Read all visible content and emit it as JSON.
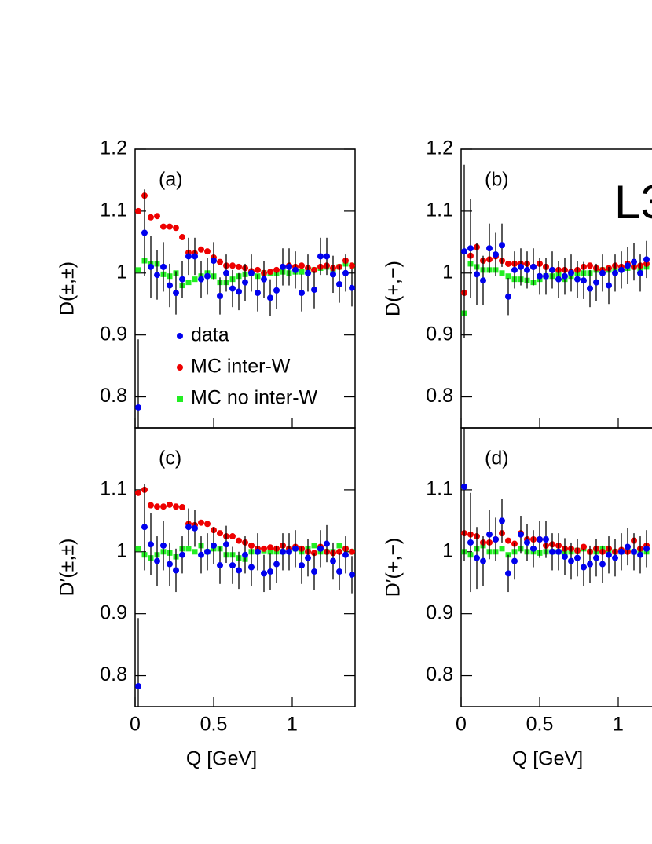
{
  "chart_data": [
    {
      "type": "scatter",
      "label": "(a)",
      "ylabel": "D(±,±)",
      "xlim": [
        0,
        1.4
      ],
      "ylim": [
        0.75,
        1.2
      ],
      "xticks": [
        0,
        0.5,
        1
      ],
      "yticks": [
        0.8,
        0.9,
        1,
        1.1,
        1.2
      ],
      "show_xtick_labels": false,
      "legend": true,
      "x": [
        0.02,
        0.06,
        0.1,
        0.14,
        0.18,
        0.22,
        0.26,
        0.3,
        0.34,
        0.38,
        0.42,
        0.46,
        0.5,
        0.54,
        0.58,
        0.62,
        0.66,
        0.7,
        0.74,
        0.78,
        0.82,
        0.86,
        0.9,
        0.94,
        0.98,
        1.02,
        1.06,
        1.1,
        1.14,
        1.18,
        1.22,
        1.26,
        1.3,
        1.34,
        1.38
      ],
      "series": [
        {
          "name": "data",
          "color": "#0000ee",
          "marker": "circle",
          "values": [
            0.783,
            1.065,
            1.01,
            0.997,
            1.01,
            0.98,
            0.968,
            0.99,
            1.027,
            1.027,
            0.99,
            0.995,
            1.02,
            0.963,
            1.0,
            0.975,
            0.97,
            0.985,
            1.0,
            0.968,
            0.99,
            0.96,
            0.972,
            1.01,
            1.01,
            1.005,
            0.968,
            1.0,
            0.973,
            1.027,
            1.027,
            0.998,
            0.982,
            1.0,
            0.976
          ],
          "errors": [
            0.11,
            0.07,
            0.05,
            0.04,
            0.04,
            0.035,
            0.035,
            0.03,
            0.03,
            0.03,
            0.03,
            0.03,
            0.03,
            0.03,
            0.03,
            0.03,
            0.03,
            0.03,
            0.03,
            0.03,
            0.03,
            0.03,
            0.03,
            0.03,
            0.03,
            0.03,
            0.03,
            0.03,
            0.03,
            0.03,
            0.03,
            0.03,
            0.03,
            0.03,
            0.03
          ]
        },
        {
          "name": "MC inter-W",
          "color": "#ee0000",
          "marker": "circle",
          "values": [
            1.1,
            1.125,
            1.09,
            1.092,
            1.075,
            1.075,
            1.073,
            1.058,
            1.033,
            1.032,
            1.038,
            1.035,
            1.025,
            1.018,
            1.012,
            1.012,
            1.01,
            1.008,
            1.003,
            1.005,
            1.0,
            1.002,
            1.005,
            1.01,
            1.012,
            1.01,
            1.012,
            1.008,
            1.005,
            1.01,
            1.012,
            1.008,
            1.01,
            1.02,
            1.012
          ]
        },
        {
          "name": "MC no inter-W",
          "color": "#22ee22",
          "marker": "square",
          "values": [
            1.005,
            1.02,
            1.015,
            1.015,
            0.998,
            0.995,
            1.0,
            0.98,
            0.985,
            0.99,
            0.995,
            1.0,
            0.995,
            0.985,
            0.985,
            0.99,
            0.995,
            0.998,
            1.0,
            0.995,
            1.0,
            1.0,
            1.0,
            1.002,
            1.0,
            1.002,
            1.002,
            1.002,
            1.005,
            1.008,
            1.01,
            1.005,
            1.01,
            1.015,
            1.012
          ]
        }
      ]
    },
    {
      "type": "scatter",
      "label": "(b)",
      "annotation": "L3",
      "ylabel": "D(+,−)",
      "xlim": [
        0,
        1.4
      ],
      "ylim": [
        0.75,
        1.2
      ],
      "xticks": [
        0,
        0.5,
        1
      ],
      "yticks": [
        0.8,
        0.9,
        1,
        1.1,
        1.2
      ],
      "show_xtick_labels": false,
      "x": [
        0.02,
        0.06,
        0.1,
        0.14,
        0.18,
        0.22,
        0.26,
        0.3,
        0.34,
        0.38,
        0.42,
        0.46,
        0.5,
        0.54,
        0.58,
        0.62,
        0.66,
        0.7,
        0.74,
        0.78,
        0.82,
        0.86,
        0.9,
        0.94,
        0.98,
        1.02,
        1.06,
        1.1,
        1.14,
        1.18
      ],
      "series": [
        {
          "color": "#0000ee",
          "marker": "circle",
          "values": [
            1.035,
            1.04,
            0.998,
            0.988,
            1.04,
            1.03,
            1.045,
            0.962,
            1.005,
            1.01,
            1.005,
            1.01,
            0.995,
            0.995,
            1.005,
            0.99,
            0.995,
            1.0,
            0.99,
            0.988,
            0.975,
            0.985,
            1.0,
            0.98,
            1.0,
            1.005,
            1.012,
            1.018,
            1.0,
            1.022
          ],
          "errors": [
            0.14,
            0.08,
            0.05,
            0.04,
            0.04,
            0.035,
            0.035,
            0.03,
            0.03,
            0.03,
            0.03,
            0.03,
            0.03,
            0.03,
            0.03,
            0.03,
            0.03,
            0.03,
            0.03,
            0.03,
            0.03,
            0.03,
            0.03,
            0.03,
            0.03,
            0.03,
            0.03,
            0.03,
            0.03,
            0.03
          ]
        },
        {
          "color": "#ee0000",
          "marker": "circle",
          "values": [
            0.968,
            1.028,
            1.042,
            1.02,
            1.022,
            1.027,
            1.02,
            1.015,
            1.015,
            1.015,
            1.015,
            1.01,
            1.015,
            1.01,
            1.005,
            1.005,
            1.005,
            1.002,
            1.005,
            1.01,
            1.012,
            1.008,
            1.005,
            1.008,
            1.012,
            1.01,
            1.015,
            1.01,
            1.012,
            1.015
          ]
        },
        {
          "color": "#22ee22",
          "marker": "square",
          "values": [
            0.935,
            1.015,
            1.01,
            1.005,
            1.005,
            1.005,
            1.0,
            0.995,
            0.99,
            0.99,
            0.988,
            0.985,
            0.99,
            0.995,
            0.995,
            0.998,
            0.99,
            0.995,
            1.0,
            1.0,
            1.0,
            1.005,
            1.005,
            1.005,
            1.005,
            1.008,
            1.008,
            1.01,
            1.005,
            1.01
          ]
        }
      ]
    },
    {
      "type": "scatter",
      "label": "(c)",
      "ylabel": "D′(±,±)",
      "xlabel": "Q [GeV]",
      "xlim": [
        0,
        1.4
      ],
      "ylim": [
        0.75,
        1.2
      ],
      "xticks": [
        0,
        0.5,
        1
      ],
      "yticks": [
        0.8,
        0.9,
        1,
        1.1
      ],
      "show_xtick_labels": true,
      "x": [
        0.02,
        0.06,
        0.1,
        0.14,
        0.18,
        0.22,
        0.26,
        0.3,
        0.34,
        0.38,
        0.42,
        0.46,
        0.5,
        0.54,
        0.58,
        0.62,
        0.66,
        0.7,
        0.74,
        0.78,
        0.82,
        0.86,
        0.9,
        0.94,
        0.98,
        1.02,
        1.06,
        1.1,
        1.14,
        1.18,
        1.22,
        1.26,
        1.3,
        1.34,
        1.38
      ],
      "series": [
        {
          "color": "#0000ee",
          "marker": "circle",
          "values": [
            0.783,
            1.04,
            1.012,
            0.985,
            1.01,
            0.98,
            0.97,
            0.995,
            1.04,
            1.038,
            0.995,
            1.0,
            1.01,
            0.978,
            1.012,
            0.978,
            0.97,
            0.995,
            0.975,
            1.0,
            0.965,
            0.968,
            0.98,
            1.0,
            1.0,
            1.005,
            0.978,
            0.99,
            0.968,
            1.005,
            1.013,
            0.985,
            0.968,
            0.995,
            0.963
          ],
          "errors": [
            0.11,
            0.07,
            0.05,
            0.04,
            0.04,
            0.035,
            0.035,
            0.03,
            0.03,
            0.03,
            0.03,
            0.03,
            0.03,
            0.03,
            0.03,
            0.03,
            0.03,
            0.03,
            0.03,
            0.03,
            0.03,
            0.03,
            0.03,
            0.03,
            0.03,
            0.03,
            0.03,
            0.03,
            0.03,
            0.03,
            0.03,
            0.03,
            0.03,
            0.03,
            0.03
          ]
        },
        {
          "color": "#ee0000",
          "marker": "circle",
          "values": [
            1.095,
            1.1,
            1.075,
            1.073,
            1.073,
            1.076,
            1.073,
            1.072,
            1.045,
            1.043,
            1.047,
            1.045,
            1.035,
            1.03,
            1.025,
            1.025,
            1.018,
            1.015,
            1.01,
            1.005,
            1.005,
            1.007,
            1.005,
            1.01,
            1.005,
            1.008,
            1.005,
            1.0,
            0.998,
            1.008,
            1.0,
            0.998,
            1.0,
            1.005,
            1.0
          ]
        },
        {
          "color": "#22ee22",
          "marker": "square",
          "values": [
            1.005,
            0.995,
            0.99,
            0.995,
            1.0,
            0.998,
            0.992,
            1.005,
            1.005,
            1.0,
            1.01,
            1.0,
            1.005,
            1.005,
            0.995,
            0.995,
            0.99,
            0.988,
            1.0,
            1.0,
            1.002,
            1.0,
            1.0,
            1.0,
            1.005,
            1.005,
            1.0,
            1.005,
            1.01,
            1.0,
            1.0,
            1.0,
            1.01,
            1.005,
            1.0
          ]
        }
      ]
    },
    {
      "type": "scatter",
      "label": "(d)",
      "ylabel": "D′(+,−)",
      "xlabel": "Q [GeV]",
      "xlim": [
        0,
        1.4
      ],
      "ylim": [
        0.75,
        1.2
      ],
      "xticks": [
        0,
        0.5,
        1
      ],
      "yticks": [
        0.8,
        0.9,
        1,
        1.1
      ],
      "show_xtick_labels": true,
      "x": [
        0.02,
        0.06,
        0.1,
        0.14,
        0.18,
        0.22,
        0.26,
        0.3,
        0.34,
        0.38,
        0.42,
        0.46,
        0.5,
        0.54,
        0.58,
        0.62,
        0.66,
        0.7,
        0.74,
        0.78,
        0.82,
        0.86,
        0.9,
        0.94,
        0.98,
        1.02,
        1.06,
        1.1,
        1.14,
        1.18
      ],
      "series": [
        {
          "color": "#0000ee",
          "marker": "circle",
          "values": [
            1.105,
            1.015,
            0.99,
            0.985,
            1.028,
            1.02,
            1.05,
            0.965,
            0.985,
            1.028,
            1.015,
            1.005,
            1.02,
            1.02,
            1.0,
            1.0,
            0.992,
            0.985,
            0.99,
            0.975,
            0.98,
            0.99,
            0.98,
            0.995,
            0.99,
            1.0,
            1.008,
            1.0,
            0.995,
            1.005
          ],
          "errors": [
            0.12,
            0.08,
            0.05,
            0.04,
            0.04,
            0.035,
            0.035,
            0.03,
            0.03,
            0.03,
            0.03,
            0.03,
            0.03,
            0.03,
            0.03,
            0.03,
            0.03,
            0.03,
            0.03,
            0.03,
            0.03,
            0.03,
            0.03,
            0.03,
            0.03,
            0.03,
            0.03,
            0.03,
            0.03,
            0.03
          ]
        },
        {
          "color": "#ee0000",
          "marker": "circle",
          "values": [
            1.03,
            1.028,
            1.025,
            1.015,
            1.015,
            1.02,
            1.03,
            1.018,
            1.013,
            1.03,
            1.02,
            1.02,
            1.02,
            1.01,
            1.012,
            1.01,
            1.005,
            1.005,
            1.002,
            1.008,
            1.0,
            1.005,
            1.0,
            1.005,
            1.0,
            1.003,
            1.0,
            1.018,
            1.005,
            1.01
          ]
        },
        {
          "color": "#22ee22",
          "marker": "square",
          "values": [
            1.0,
            0.995,
            1.005,
            1.01,
            1.0,
            1.0,
            1.005,
            0.995,
            1.0,
            1.005,
            1.0,
            1.0,
            0.998,
            1.0,
            1.0,
            1.0,
            0.998,
            1.0,
            1.002,
            1.005,
            1.0,
            1.0,
            1.005,
            1.0,
            1.0,
            1.0,
            1.002,
            1.0,
            1.0,
            1.0
          ]
        }
      ]
    }
  ]
}
